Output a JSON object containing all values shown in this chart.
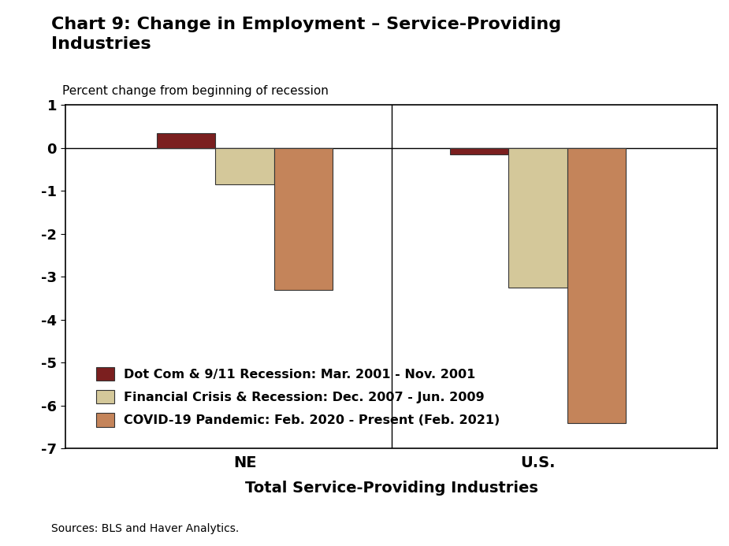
{
  "title": "Chart 9: Change in Employment – Service-Providing\nIndustries",
  "ylabel": "Percent change from beginning of recession",
  "xlabel": "Total Service-Providing Industries",
  "groups": [
    "NE",
    "U.S."
  ],
  "series": [
    {
      "label": "Dot Com & 9/11 Recession: Mar. 2001 - Nov. 2001",
      "color": "#7B1F1F",
      "values": [
        0.35,
        -0.15
      ]
    },
    {
      "label": "Financial Crisis & Recession: Dec. 2007 - Jun. 2009",
      "color": "#D4C89A",
      "values": [
        -0.85,
        -3.25
      ]
    },
    {
      "label": "COVID-19 Pandemic: Feb. 2020 - Present (Feb. 2021)",
      "color": "#C4845A",
      "values": [
        -3.3,
        -6.4
      ]
    }
  ],
  "ylim": [
    -7,
    1
  ],
  "yticks": [
    -7,
    -6,
    -5,
    -4,
    -3,
    -2,
    -1,
    0,
    1
  ],
  "background_color": "#FFFFFF",
  "bar_width": 0.18,
  "group_centers": [
    0.55,
    1.45
  ],
  "sources_text": "Sources: BLS and Haver Analytics.",
  "edge_color": "#333333",
  "edge_lw": 0.8
}
